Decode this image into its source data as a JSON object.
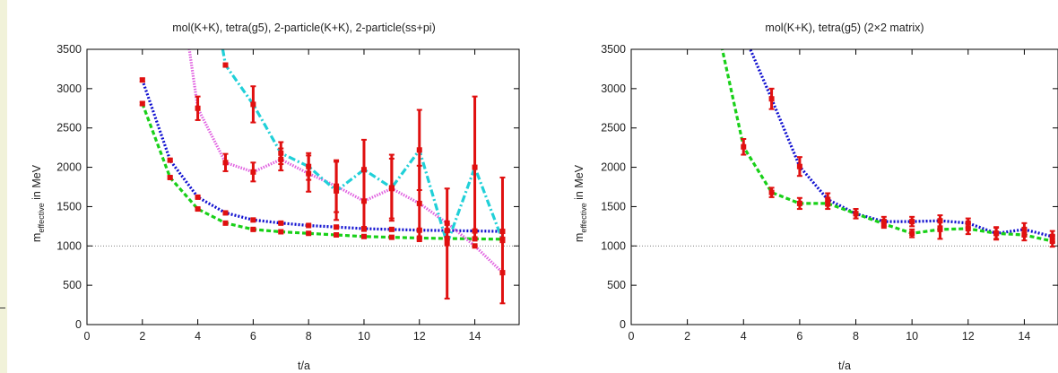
{
  "colors": {
    "background": "#f1f2d9",
    "panel": "#ffffff",
    "axis": "#000000",
    "reference": "#555555",
    "error_bars": "#e01010",
    "blue_series": "#1010d0",
    "green_series": "#18d018",
    "magenta_series": "#e060e0",
    "cyan_series": "#20d0d8"
  },
  "chart_data": [
    {
      "type": "line",
      "title": "mol(K+K), tetra(g5), 2-particle(K+K), 2-particle(ss+pi)",
      "xlabel": "t/a",
      "ylabel_main": "m",
      "ylabel_sub": "effective",
      "ylabel_rest": " in MeV",
      "xlim": [
        0,
        15.6
      ],
      "ylim": [
        0,
        3500
      ],
      "xticks": [
        0,
        2,
        4,
        6,
        8,
        10,
        12,
        14
      ],
      "yticks": [
        0,
        500,
        1000,
        1500,
        2000,
        2500,
        3000,
        3500
      ],
      "reference_line": 1000,
      "grid": false,
      "series": [
        {
          "color": "#1010d0",
          "dash": "2,2",
          "x": [
            2,
            3,
            4,
            5,
            6,
            7,
            8,
            9,
            10,
            11,
            12,
            13,
            14,
            15
          ],
          "y": [
            3110,
            2090,
            1620,
            1420,
            1330,
            1290,
            1260,
            1240,
            1220,
            1210,
            1200,
            1195,
            1190,
            1185
          ],
          "err": [
            20,
            15,
            12,
            10,
            10,
            10,
            10,
            10,
            10,
            10,
            10,
            10,
            10,
            10
          ]
        },
        {
          "color": "#18d018",
          "dash": "5,3",
          "x": [
            2,
            3,
            4,
            5,
            6,
            7,
            8,
            9,
            10,
            11,
            12,
            13,
            14,
            15
          ],
          "y": [
            2810,
            1870,
            1470,
            1290,
            1210,
            1180,
            1160,
            1140,
            1120,
            1110,
            1100,
            1095,
            1090,
            1085
          ],
          "err": [
            20,
            15,
            12,
            10,
            10,
            10,
            10,
            10,
            10,
            10,
            10,
            10,
            10,
            10
          ]
        },
        {
          "color": "#e060e0",
          "dash": "1.5,1.5",
          "x": [
            3,
            4,
            5,
            6,
            7,
            8,
            9,
            10,
            11,
            12,
            13,
            14,
            15
          ],
          "y": [
            5200,
            2750,
            2060,
            1940,
            2100,
            1920,
            1760,
            1570,
            1730,
            1540,
            1290,
            1000,
            660
          ],
          "err": [
            0,
            150,
            110,
            120,
            140,
            230,
            330,
            380,
            380,
            480,
            0,
            0,
            0
          ]
        },
        {
          "color": "#20d0d8",
          "dash": "8,3,2,3",
          "x": [
            4,
            5,
            6,
            7,
            8,
            9,
            10,
            11,
            12,
            13,
            14,
            15
          ],
          "y": [
            5300,
            3300,
            2800,
            2180,
            2010,
            1700,
            1970,
            1740,
            2220,
            1030,
            2000,
            1070
          ],
          "err": [
            0,
            0,
            230,
            140,
            170,
            370,
            380,
            420,
            510,
            700,
            900,
            800
          ]
        }
      ]
    },
    {
      "type": "line",
      "title": "mol(K+K), tetra(g5) (2×2 matrix)",
      "xlabel": "t/a",
      "ylabel_main": "m",
      "ylabel_sub": "effective",
      "ylabel_rest": " in MeV",
      "xlim": [
        0,
        15.2
      ],
      "ylim": [
        0,
        3500
      ],
      "xticks": [
        0,
        2,
        4,
        6,
        8,
        10,
        12,
        14
      ],
      "yticks": [
        0,
        500,
        1000,
        1500,
        2000,
        2500,
        3000,
        3500
      ],
      "reference_line": 1000,
      "grid": false,
      "series": [
        {
          "color": "#1010d0",
          "dash": "2,2",
          "x": [
            3,
            4,
            5,
            6,
            7,
            8,
            9,
            10,
            11,
            12,
            13,
            14,
            15
          ],
          "y": [
            5400,
            3700,
            2870,
            2010,
            1590,
            1410,
            1310,
            1310,
            1320,
            1290,
            1160,
            1210,
            1120
          ],
          "err": [
            0,
            0,
            130,
            120,
            80,
            60,
            60,
            60,
            70,
            60,
            80,
            80,
            70
          ]
        },
        {
          "color": "#18d018",
          "dash": "5,3",
          "x": [
            3,
            4,
            5,
            6,
            7,
            8,
            9,
            10,
            11,
            12,
            13,
            14,
            15
          ],
          "y": [
            3900,
            2260,
            1680,
            1540,
            1540,
            1410,
            1280,
            1160,
            1210,
            1220,
            1160,
            1140,
            1060
          ],
          "err": [
            0,
            100,
            60,
            70,
            70,
            60,
            50,
            50,
            120,
            70,
            70,
            70,
            70
          ]
        }
      ]
    }
  ]
}
